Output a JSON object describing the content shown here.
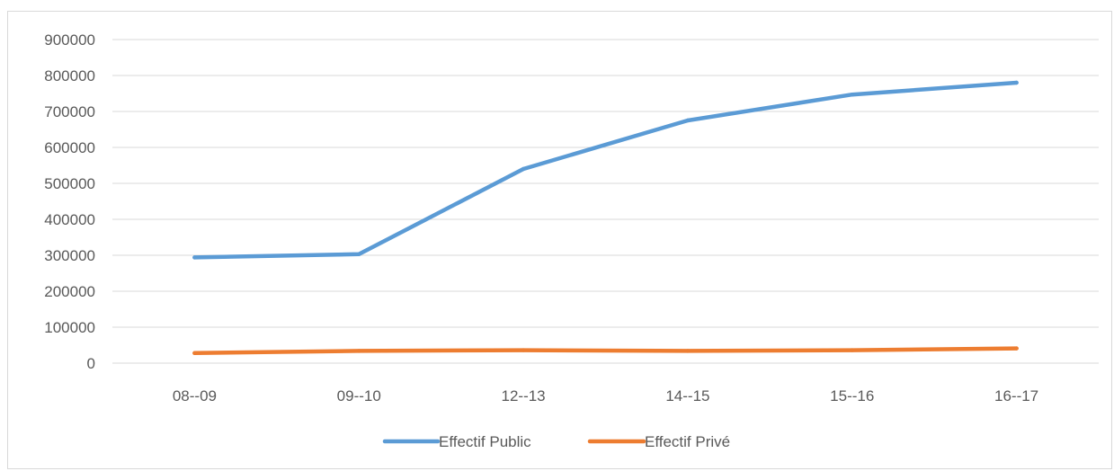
{
  "chart_data": {
    "type": "line",
    "title": "",
    "xlabel": "",
    "ylabel": "",
    "categories": [
      "08--09",
      "09--10",
      "12--13",
      "14--15",
      "15--16",
      "16--17"
    ],
    "ylim": [
      0,
      900000
    ],
    "yticks": [
      0,
      100000,
      200000,
      300000,
      400000,
      500000,
      600000,
      700000,
      800000,
      900000
    ],
    "grid": true,
    "legend_position": "bottom",
    "series": [
      {
        "name": "Effectif Public",
        "color": "#5b9bd5",
        "values": [
          294000,
          303000,
          540000,
          675000,
          747000,
          780000
        ]
      },
      {
        "name": "Effectif Privé",
        "color": "#ed7d31",
        "values": [
          28000,
          34000,
          36000,
          34000,
          36000,
          41000
        ]
      }
    ]
  }
}
